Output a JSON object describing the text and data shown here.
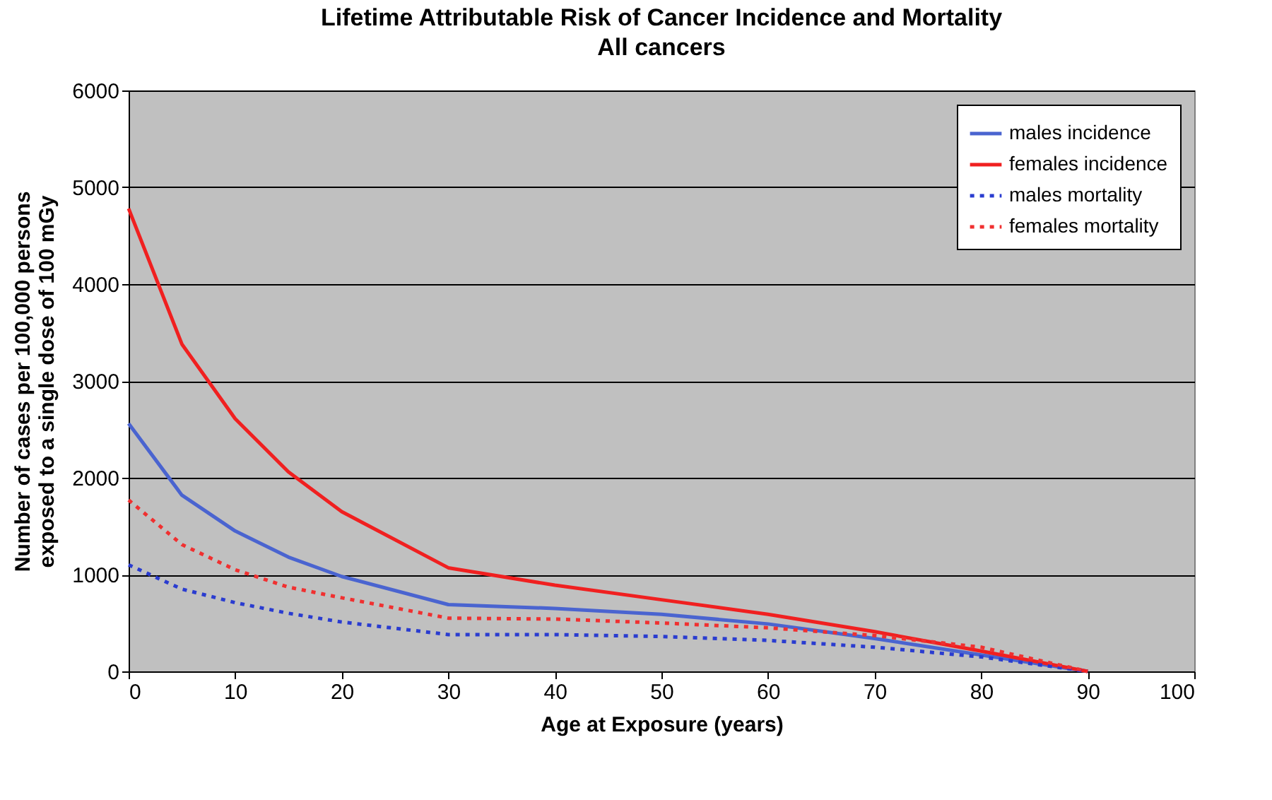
{
  "chart_data": {
    "type": "line",
    "title": "Lifetime Attributable Risk of Cancer Incidence and Mortality",
    "subtitle": "All cancers",
    "xlabel": "Age at Exposure (years)",
    "ylabel": "Number of cases per 100,000 persons exposed to a single dose of 100 mGy",
    "x": [
      0,
      5,
      10,
      15,
      20,
      30,
      40,
      50,
      60,
      70,
      80,
      90
    ],
    "xlim": [
      0,
      100
    ],
    "xticks": [
      0,
      10,
      20,
      30,
      40,
      50,
      60,
      70,
      80,
      90,
      100
    ],
    "ylim": [
      0,
      6000
    ],
    "yticks": [
      0,
      1000,
      2000,
      3000,
      4000,
      5000,
      6000
    ],
    "grid": "y",
    "legend": "top right",
    "marker": "none",
    "series": [
      {
        "name": "males incidence",
        "color": "#4a64d0",
        "line_style": "solid",
        "values": [
          2560,
          1820,
          1450,
          1180,
          980,
          690,
          650,
          590,
          490,
          340,
          170,
          0
        ]
      },
      {
        "name": "females incidence",
        "color": "#f02020",
        "line_style": "solid",
        "values": [
          4780,
          3380,
          2610,
          2060,
          1650,
          1070,
          890,
          740,
          590,
          410,
          210,
          0
        ]
      },
      {
        "name": "males mortality",
        "color": "#2a3cd0",
        "line_style": "dotted",
        "values": [
          1100,
          850,
          710,
          600,
          510,
          380,
          380,
          360,
          320,
          250,
          150,
          0
        ]
      },
      {
        "name": "females mortality",
        "color": "#f03030",
        "line_style": "dotted",
        "values": [
          1770,
          1310,
          1050,
          870,
          760,
          550,
          540,
          500,
          450,
          370,
          250,
          0
        ]
      }
    ]
  }
}
